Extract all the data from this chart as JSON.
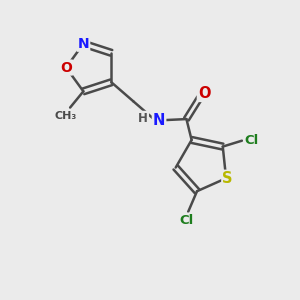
{
  "bg_color": "#ebebeb",
  "atom_colors": {
    "C": "#4a4a4a",
    "N": "#1a1aff",
    "O": "#cc0000",
    "S": "#b8b800",
    "Cl": "#1e7d1e",
    "H": "#555555"
  },
  "bond_color": "#4a4a4a",
  "figsize": [
    3.0,
    3.0
  ],
  "dpi": 100
}
